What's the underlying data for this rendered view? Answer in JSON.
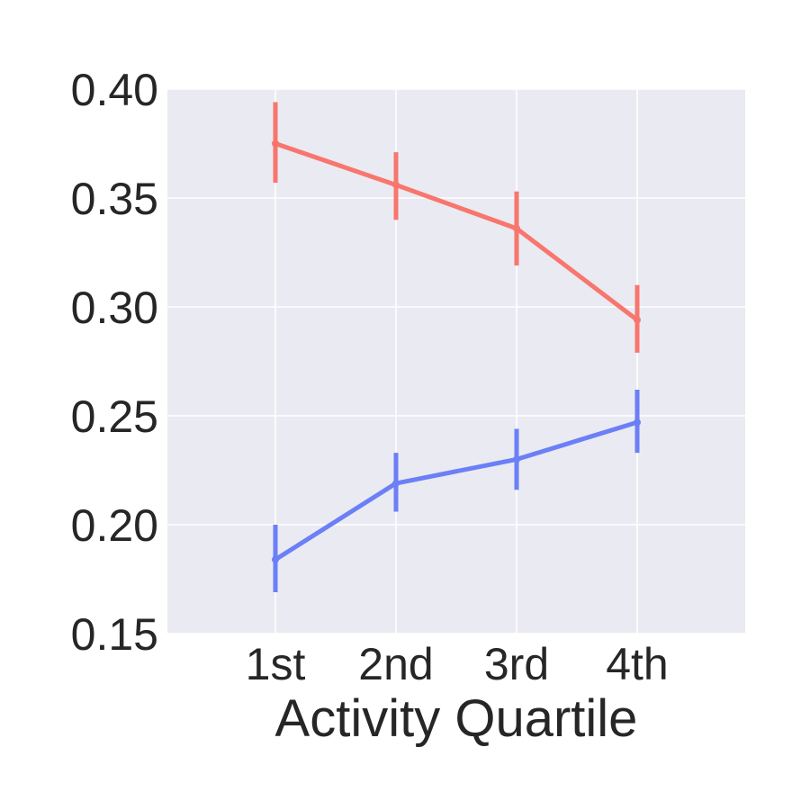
{
  "chart_data": {
    "type": "line",
    "title": "",
    "xlabel": "Activity Quartile",
    "ylabel": "",
    "categories": [
      "1st",
      "2nd",
      "3rd",
      "4th"
    ],
    "ylim": [
      0.15,
      0.4
    ],
    "yticks": [
      0.15,
      0.2,
      0.25,
      0.3,
      0.35,
      0.4
    ],
    "ytick_labels": [
      "0.15",
      "0.20",
      "0.25",
      "0.30",
      "0.35",
      "0.40"
    ],
    "grid": true,
    "background": "#eaeaf2",
    "series": [
      {
        "color": "#f8766d",
        "values": [
          0.375,
          0.356,
          0.336,
          0.294
        ],
        "err_low": [
          0.357,
          0.34,
          0.319,
          0.279
        ],
        "err_high": [
          0.394,
          0.371,
          0.353,
          0.31
        ]
      },
      {
        "color": "#6b7ff7",
        "values": [
          0.184,
          0.219,
          0.23,
          0.247
        ],
        "err_low": [
          0.169,
          0.206,
          0.216,
          0.233
        ],
        "err_high": [
          0.2,
          0.233,
          0.244,
          0.262
        ]
      }
    ]
  }
}
